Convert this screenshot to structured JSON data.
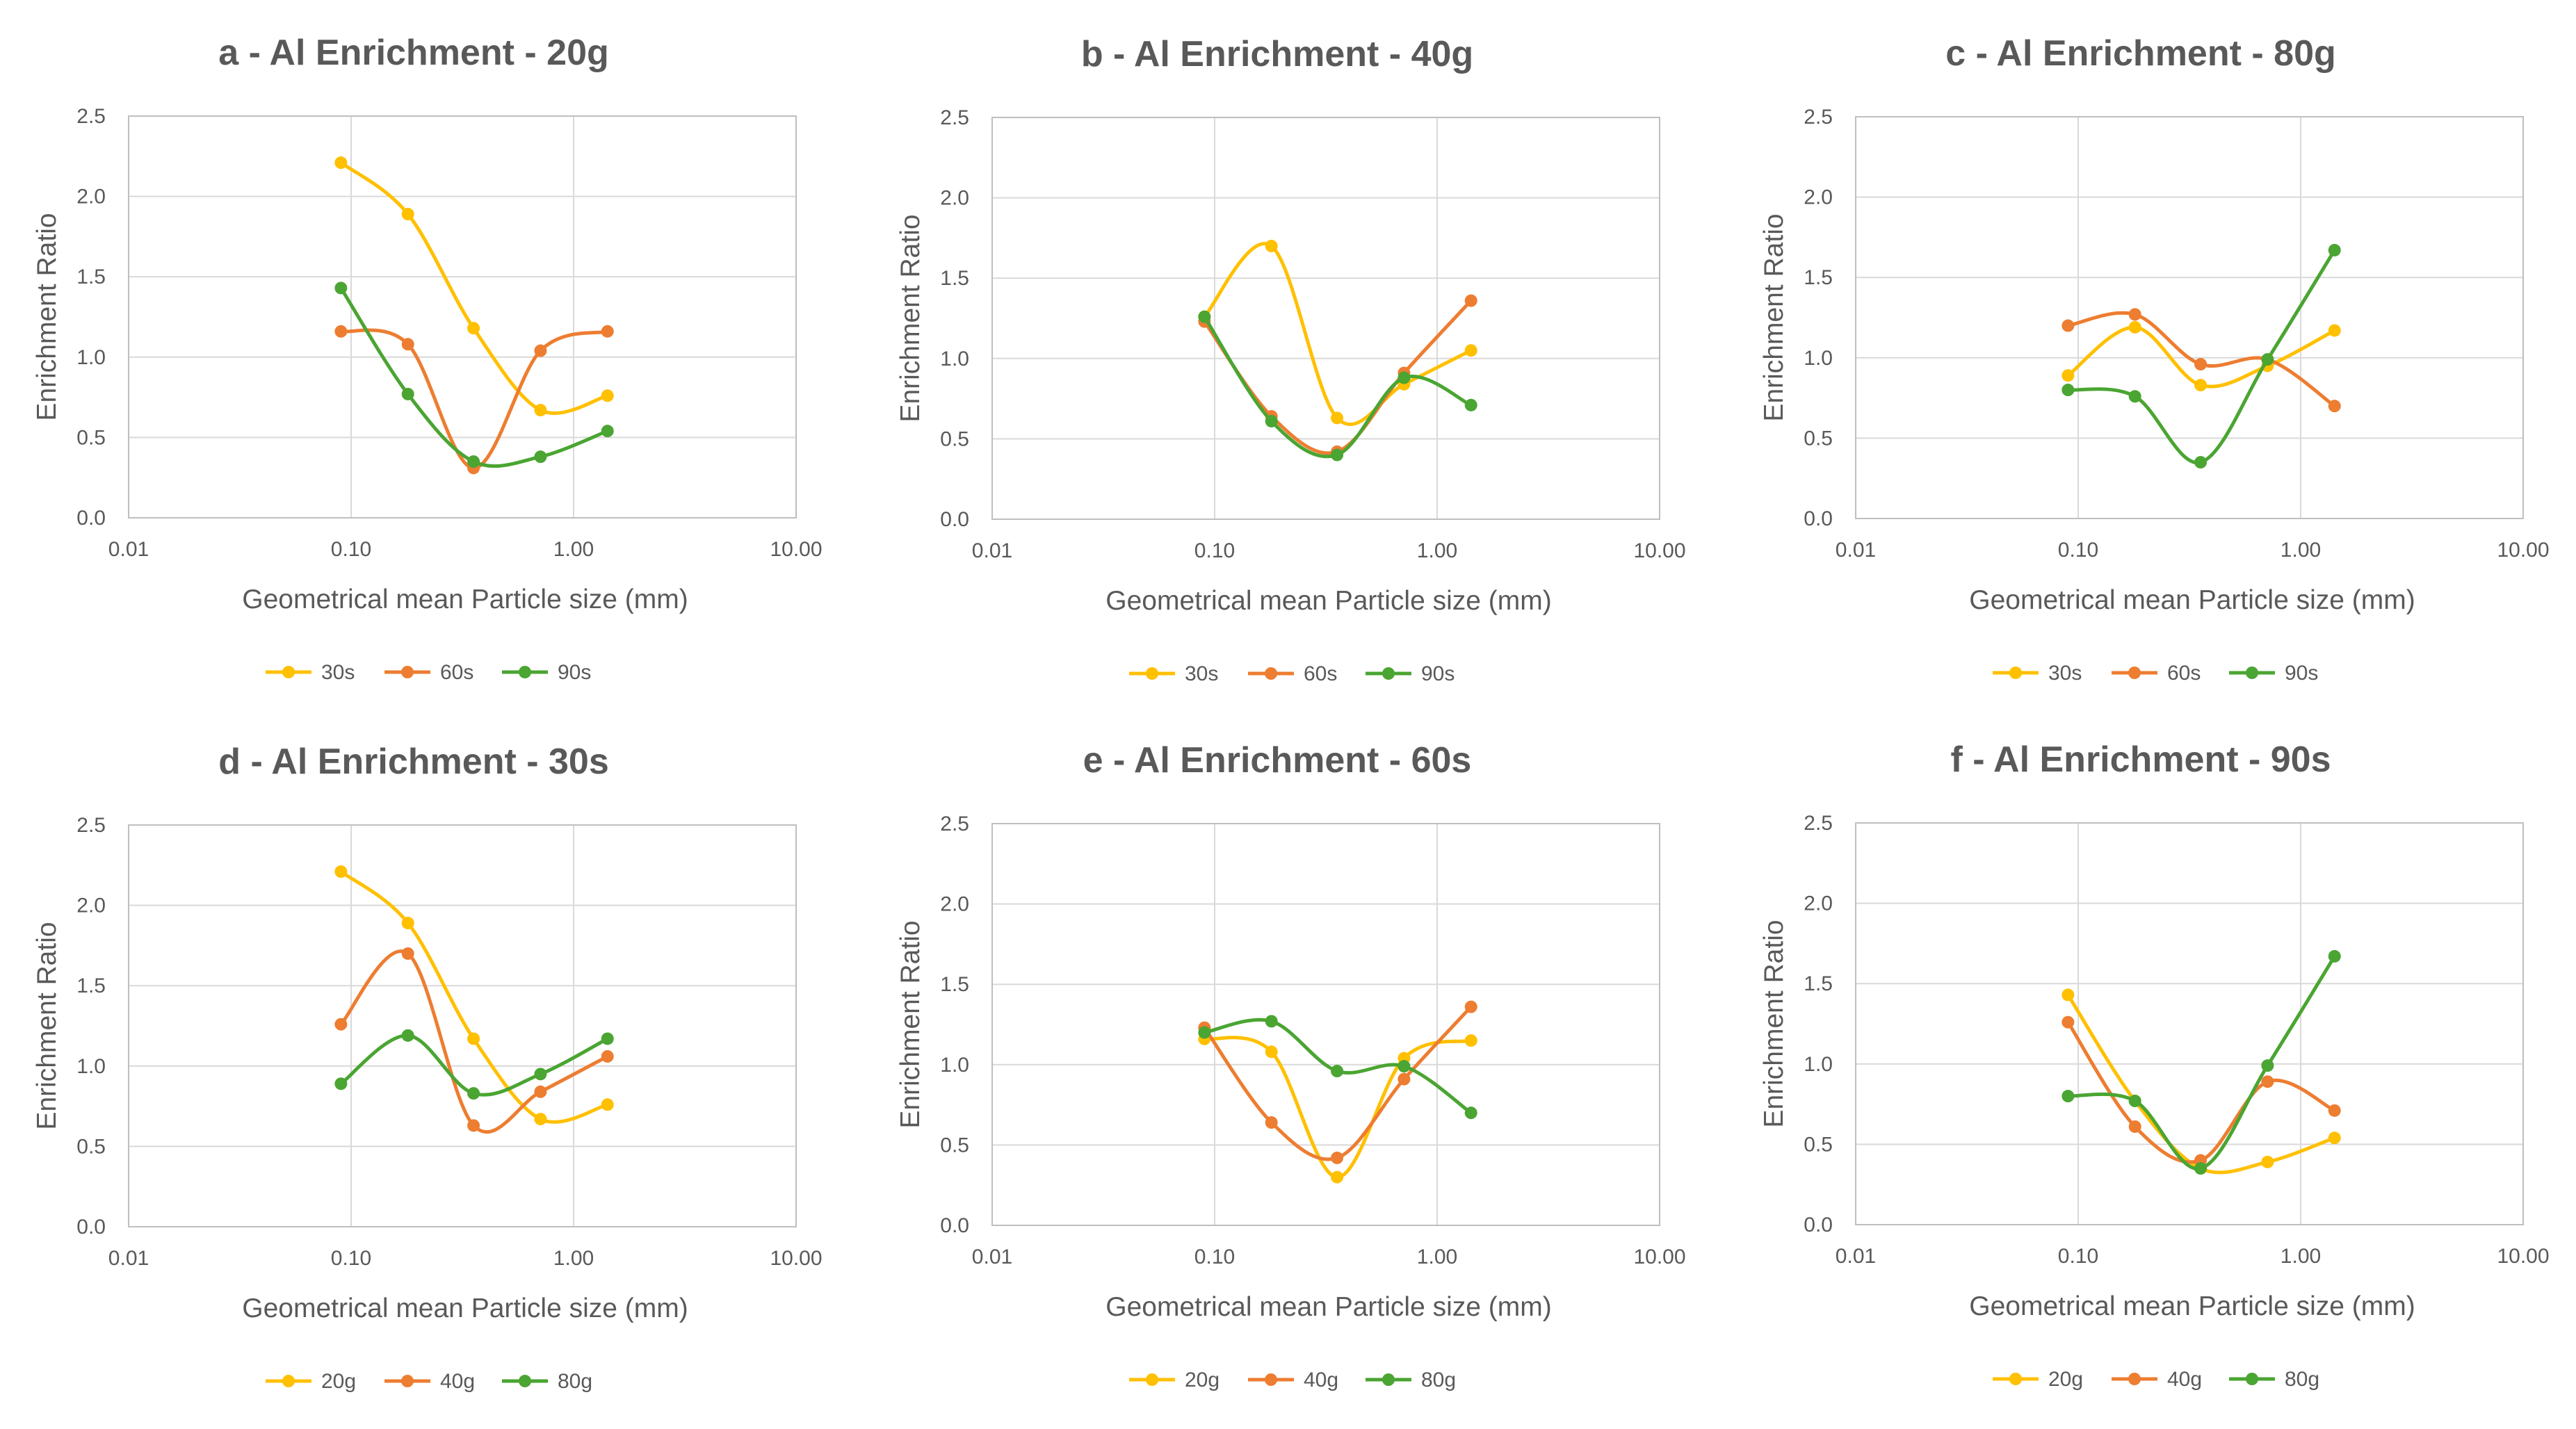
{
  "colors": {
    "series_1": "#FFC000",
    "series_2": "#ED7D31",
    "series_3": "#4AA532",
    "grid": "#D9D9D9",
    "text": "#595959"
  },
  "chart_data": [
    {
      "type": "line",
      "title": "a - Al Enrichment - 20g",
      "xlabel": "Geometrical mean Particle size (mm)",
      "ylabel": "Enrichment Ratio",
      "xscale": "log",
      "xlim": [
        0.01,
        10
      ],
      "ylim": [
        0,
        2.5
      ],
      "xticks": [
        "0.01",
        "0.10",
        "1.00",
        "10.00"
      ],
      "yticks": [
        "0.0",
        "0.5",
        "1.0",
        "1.5",
        "2.0",
        "2.5"
      ],
      "legend": "bottom",
      "x": [
        0.09,
        0.18,
        0.355,
        0.71,
        1.42
      ],
      "series": [
        {
          "name": "30s",
          "values": [
            2.21,
            1.89,
            1.18,
            0.67,
            0.76
          ]
        },
        {
          "name": "60s",
          "values": [
            1.16,
            1.08,
            0.31,
            1.04,
            1.16
          ]
        },
        {
          "name": "90s",
          "values": [
            1.43,
            0.77,
            0.35,
            0.38,
            0.54
          ]
        }
      ]
    },
    {
      "type": "line",
      "title": "b - Al Enrichment - 40g",
      "xlabel": "Geometrical mean Particle size (mm)",
      "ylabel": "Enrichment Ratio",
      "xscale": "log",
      "xlim": [
        0.01,
        10
      ],
      "ylim": [
        0,
        2.5
      ],
      "xticks": [
        "0.01",
        "0.10",
        "1.00",
        "10.00"
      ],
      "yticks": [
        "0.0",
        "0.5",
        "1.0",
        "1.5",
        "2.0",
        "2.5"
      ],
      "legend": "bottom",
      "x": [
        0.09,
        0.18,
        0.355,
        0.71,
        1.42
      ],
      "series": [
        {
          "name": "30s",
          "values": [
            1.26,
            1.7,
            0.63,
            0.84,
            1.05
          ]
        },
        {
          "name": "60s",
          "values": [
            1.23,
            0.64,
            0.42,
            0.91,
            1.36
          ]
        },
        {
          "name": "90s",
          "values": [
            1.26,
            0.61,
            0.4,
            0.88,
            0.71
          ]
        }
      ]
    },
    {
      "type": "line",
      "title": "c - Al Enrichment - 80g",
      "xlabel": "Geometrical mean Particle size (mm)",
      "ylabel": "Enrichment Ratio",
      "xscale": "log",
      "xlim": [
        0.01,
        10
      ],
      "ylim": [
        0,
        2.5
      ],
      "xticks": [
        "0.01",
        "0.10",
        "1.00",
        "10.00"
      ],
      "yticks": [
        "0.0",
        "0.5",
        "1.0",
        "1.5",
        "2.0",
        "2.5"
      ],
      "legend": "bottom",
      "x": [
        0.09,
        0.18,
        0.355,
        0.71,
        1.42
      ],
      "series": [
        {
          "name": "30s",
          "values": [
            0.89,
            1.19,
            0.83,
            0.95,
            1.17
          ]
        },
        {
          "name": "60s",
          "values": [
            1.2,
            1.27,
            0.96,
            0.99,
            0.7
          ]
        },
        {
          "name": "90s",
          "values": [
            0.8,
            0.76,
            0.35,
            0.99,
            1.67
          ]
        }
      ]
    },
    {
      "type": "line",
      "title": "d - Al Enrichment - 30s",
      "xlabel": "Geometrical mean Particle size (mm)",
      "ylabel": "Enrichment Ratio",
      "xscale": "log",
      "xlim": [
        0.01,
        10
      ],
      "ylim": [
        0,
        2.5
      ],
      "xticks": [
        "0.01",
        "0.10",
        "1.00",
        "10.00"
      ],
      "yticks": [
        "0.0",
        "0.5",
        "1.0",
        "1.5",
        "2.0",
        "2.5"
      ],
      "legend": "bottom",
      "x": [
        0.09,
        0.18,
        0.355,
        0.71,
        1.42
      ],
      "series": [
        {
          "name": "20g",
          "values": [
            2.21,
            1.89,
            1.17,
            0.67,
            0.76
          ]
        },
        {
          "name": "40g",
          "values": [
            1.26,
            1.7,
            0.63,
            0.84,
            1.06
          ]
        },
        {
          "name": "80g",
          "values": [
            0.89,
            1.19,
            0.83,
            0.95,
            1.17
          ]
        }
      ]
    },
    {
      "type": "line",
      "title": "e - Al Enrichment - 60s",
      "xlabel": "Geometrical mean Particle size (mm)",
      "ylabel": "Enrichment Ratio",
      "xscale": "log",
      "xlim": [
        0.01,
        10
      ],
      "ylim": [
        0,
        2.5
      ],
      "xticks": [
        "0.01",
        "0.10",
        "1.00",
        "10.00"
      ],
      "yticks": [
        "0.0",
        "0.5",
        "1.0",
        "1.5",
        "2.0",
        "2.5"
      ],
      "legend": "bottom",
      "x": [
        0.09,
        0.18,
        0.355,
        0.71,
        1.42
      ],
      "series": [
        {
          "name": "20g",
          "values": [
            1.16,
            1.08,
            0.3,
            1.04,
            1.15
          ]
        },
        {
          "name": "40g",
          "values": [
            1.23,
            0.64,
            0.42,
            0.91,
            1.36
          ]
        },
        {
          "name": "80g",
          "values": [
            1.2,
            1.27,
            0.96,
            0.99,
            0.7
          ]
        }
      ]
    },
    {
      "type": "line",
      "title": "f - Al Enrichment - 90s",
      "xlabel": "Geometrical mean Particle size (mm)",
      "ylabel": "Enrichment Ratio",
      "xscale": "log",
      "xlim": [
        0.01,
        10
      ],
      "ylim": [
        0,
        2.5
      ],
      "xticks": [
        "0.01",
        "0.10",
        "1.00",
        "10.00"
      ],
      "yticks": [
        "0.0",
        "0.5",
        "1.0",
        "1.5",
        "2.0",
        "2.5"
      ],
      "legend": "bottom",
      "x": [
        0.09,
        0.18,
        0.355,
        0.71,
        1.42
      ],
      "series": [
        {
          "name": "20g",
          "values": [
            1.43,
            0.77,
            0.35,
            0.39,
            0.54
          ]
        },
        {
          "name": "40g",
          "values": [
            1.26,
            0.61,
            0.4,
            0.89,
            0.71
          ]
        },
        {
          "name": "80g",
          "values": [
            0.8,
            0.77,
            0.35,
            0.99,
            1.67
          ]
        }
      ]
    }
  ]
}
